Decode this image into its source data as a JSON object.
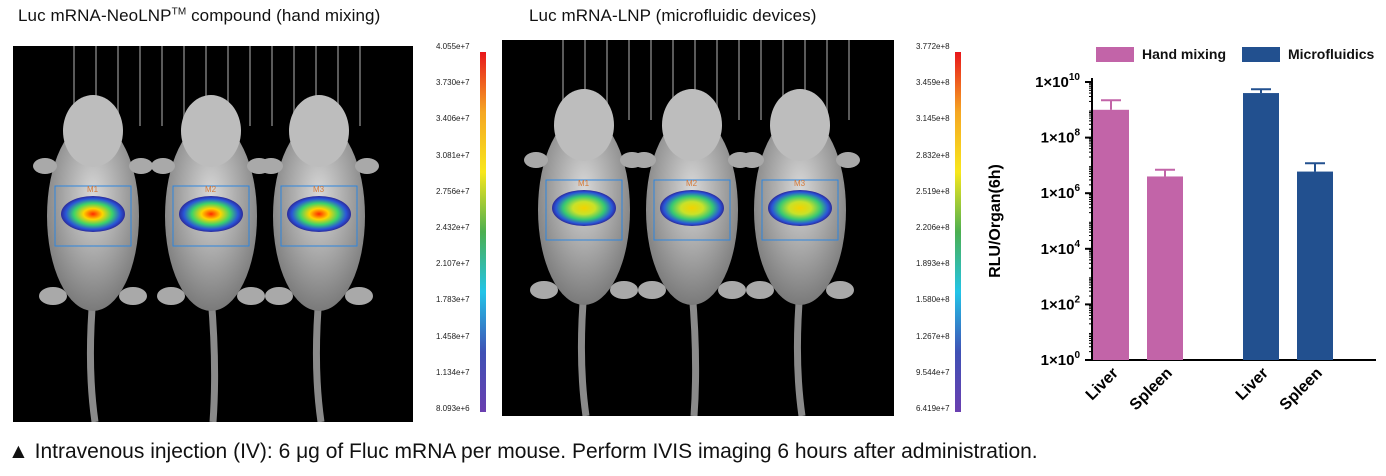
{
  "panels": [
    {
      "title_prefix": "Luc mRNA-NeoLNP",
      "title_sup": "TM",
      "title_suffix": " compound (hand mixing)",
      "scale": [
        "4.055e+7",
        "3.730e+7",
        "3.406e+7",
        "3.081e+7",
        "2.756e+7",
        "2.432e+7",
        "2.107e+7",
        "1.783e+7",
        "1.458e+7",
        "1.134e+7",
        "8.093e+6"
      ],
      "roi_labels": [
        "M1",
        "M2",
        "M3"
      ]
    },
    {
      "title": "Luc mRNA-LNP (microfluidic devices)",
      "scale": [
        "3.772e+8",
        "3.459e+8",
        "3.145e+8",
        "2.832e+8",
        "2.519e+8",
        "2.206e+8",
        "1.893e+8",
        "1.580e+8",
        "1.267e+8",
        "9.544e+7",
        "6.419e+7"
      ],
      "roi_labels": [
        "M1",
        "M2",
        "M3"
      ]
    }
  ],
  "caption": "▲ Intravenous injection (IV): 6 μg of Fluc mRNA per mouse. Perform IVIS imaging 6 hours after administration.",
  "colors": {
    "hand_mixing": "#c264a8",
    "microfluidics": "#22508f"
  },
  "chart_data": {
    "type": "bar",
    "categories": [
      "Liver",
      "Spleen"
    ],
    "series": [
      {
        "name": "Hand mixing",
        "values": [
          1000000000.0,
          4000000.0
        ],
        "errors": [
          1200000000.0,
          3000000.0
        ],
        "color": "#c264a8"
      },
      {
        "name": "Microfluidics",
        "values": [
          4000000000.0,
          6000000.0
        ],
        "errors": [
          1500000000.0,
          6000000.0
        ],
        "color": "#22508f"
      }
    ],
    "ylabel": "RLU/Organ(6h)",
    "xlabel": "",
    "yscale": "log",
    "ylim": [
      1,
      10000000000.0
    ],
    "yticks": [
      1,
      100,
      10000,
      1000000,
      100000000,
      10000000000
    ],
    "ytick_labels": [
      {
        "base": "1×10",
        "exp": "0"
      },
      {
        "base": "1×10",
        "exp": "2"
      },
      {
        "base": "1×10",
        "exp": "4"
      },
      {
        "base": "1×10",
        "exp": "6"
      },
      {
        "base": "1×10",
        "exp": "8"
      },
      {
        "base": "1×10",
        "exp": "10"
      }
    ],
    "legend": "top"
  }
}
